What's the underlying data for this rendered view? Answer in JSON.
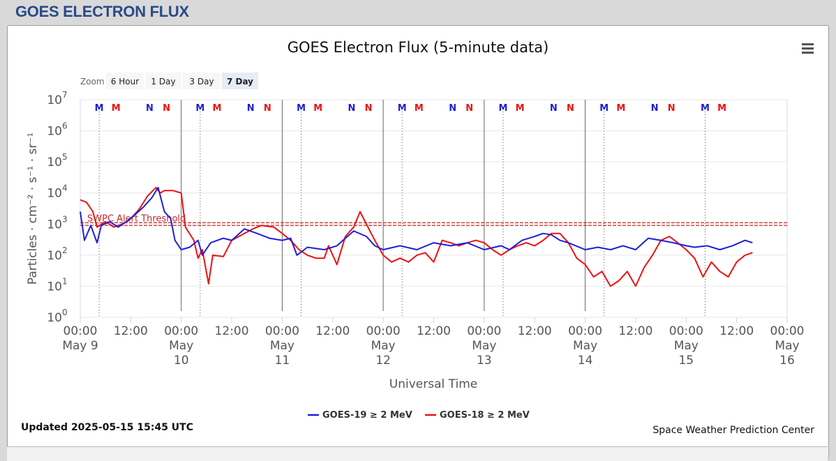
{
  "page_heading": "GOES ELECTRON FLUX",
  "menu_icon": "hamburger-menu-icon",
  "zoom": {
    "label": "Zoom",
    "buttons": [
      "6 Hour",
      "1 Day",
      "3 Day",
      "7 Day"
    ],
    "selected": "7 Day"
  },
  "footer": {
    "updated": "Updated 2025-05-15 15:45 UTC",
    "credit": "Space Weather Prediction Center"
  },
  "colors": {
    "goes19": "#1f1fd6",
    "goes18": "#ee1111",
    "threshold": "#c62828",
    "heading": "#2a4a86"
  },
  "chart_data": {
    "type": "line",
    "title": "GOES Electron Flux (5-minute data)",
    "xlabel": "Universal Time",
    "ylabel": "Particles · cm⁻² · s⁻¹ · sr⁻¹",
    "yscale": "log",
    "ylim": [
      1,
      10000000
    ],
    "y_tick_exponents": [
      0,
      1,
      2,
      3,
      4,
      5,
      6,
      7
    ],
    "xlim": [
      "2025-05-09 00:00",
      "2025-05-16 00:00"
    ],
    "x_ticks": [
      {
        "time": "2025-05-09 00:00",
        "lines": [
          "00:00",
          "May 9"
        ]
      },
      {
        "time": "2025-05-09 12:00",
        "lines": [
          "12:00"
        ]
      },
      {
        "time": "2025-05-10 00:00",
        "lines": [
          "00:00",
          "May",
          "10"
        ]
      },
      {
        "time": "2025-05-10 12:00",
        "lines": [
          "12:00"
        ]
      },
      {
        "time": "2025-05-11 00:00",
        "lines": [
          "00:00",
          "May",
          "11"
        ]
      },
      {
        "time": "2025-05-11 12:00",
        "lines": [
          "12:00"
        ]
      },
      {
        "time": "2025-05-12 00:00",
        "lines": [
          "00:00",
          "May",
          "12"
        ]
      },
      {
        "time": "2025-05-12 12:00",
        "lines": [
          "12:00"
        ]
      },
      {
        "time": "2025-05-13 00:00",
        "lines": [
          "00:00",
          "May",
          "13"
        ]
      },
      {
        "time": "2025-05-13 12:00",
        "lines": [
          "12:00"
        ]
      },
      {
        "time": "2025-05-14 00:00",
        "lines": [
          "00:00",
          "May",
          "14"
        ]
      },
      {
        "time": "2025-05-14 12:00",
        "lines": [
          "12:00"
        ]
      },
      {
        "time": "2025-05-15 00:00",
        "lines": [
          "00:00",
          "May",
          "15"
        ]
      },
      {
        "time": "2025-05-15 12:00",
        "lines": [
          "12:00"
        ]
      },
      {
        "time": "2025-05-16 00:00",
        "lines": [
          "00:00",
          "May",
          "16"
        ]
      }
    ],
    "threshold": {
      "label": "SWPC Alert Threshold",
      "value": 1000
    },
    "day_marks": [
      "2025-05-10 00:00",
      "2025-05-11 00:00",
      "2025-05-12 00:00",
      "2025-05-13 00:00",
      "2025-05-14 00:00"
    ],
    "markers": [
      {
        "label": "M",
        "time": "2025-05-09 04:30",
        "color": "blue"
      },
      {
        "label": "M",
        "time": "2025-05-09 08:30",
        "color": "red"
      },
      {
        "label": "N",
        "time": "2025-05-09 16:30",
        "color": "blue"
      },
      {
        "label": "N",
        "time": "2025-05-09 20:30",
        "color": "red"
      },
      {
        "label": "M",
        "time": "2025-05-10 04:30",
        "color": "blue"
      },
      {
        "label": "M",
        "time": "2025-05-10 08:30",
        "color": "red"
      },
      {
        "label": "N",
        "time": "2025-05-10 16:30",
        "color": "blue"
      },
      {
        "label": "N",
        "time": "2025-05-10 20:30",
        "color": "red"
      },
      {
        "label": "M",
        "time": "2025-05-11 04:30",
        "color": "blue"
      },
      {
        "label": "M",
        "time": "2025-05-11 08:30",
        "color": "red"
      },
      {
        "label": "N",
        "time": "2025-05-11 16:30",
        "color": "blue"
      },
      {
        "label": "N",
        "time": "2025-05-11 20:30",
        "color": "red"
      },
      {
        "label": "M",
        "time": "2025-05-12 04:30",
        "color": "blue"
      },
      {
        "label": "M",
        "time": "2025-05-12 08:30",
        "color": "red"
      },
      {
        "label": "N",
        "time": "2025-05-12 16:30",
        "color": "blue"
      },
      {
        "label": "N",
        "time": "2025-05-12 20:30",
        "color": "red"
      },
      {
        "label": "M",
        "time": "2025-05-13 04:30",
        "color": "blue"
      },
      {
        "label": "M",
        "time": "2025-05-13 08:30",
        "color": "red"
      },
      {
        "label": "N",
        "time": "2025-05-13 16:30",
        "color": "blue"
      },
      {
        "label": "N",
        "time": "2025-05-13 20:30",
        "color": "red"
      },
      {
        "label": "M",
        "time": "2025-05-14 04:30",
        "color": "blue"
      },
      {
        "label": "M",
        "time": "2025-05-14 08:30",
        "color": "red"
      },
      {
        "label": "N",
        "time": "2025-05-14 16:30",
        "color": "blue"
      },
      {
        "label": "N",
        "time": "2025-05-14 20:30",
        "color": "red"
      },
      {
        "label": "M",
        "time": "2025-05-15 04:30",
        "color": "blue"
      },
      {
        "label": "M",
        "time": "2025-05-15 08:30",
        "color": "red"
      }
    ],
    "series": [
      {
        "name": "GOES-19 ≥ 2 MeV",
        "color": "#1f1fd6",
        "points": [
          [
            "2025-05-09 00:00",
            2500
          ],
          [
            "2025-05-09 01:00",
            300
          ],
          [
            "2025-05-09 02:30",
            900
          ],
          [
            "2025-05-09 04:00",
            250
          ],
          [
            "2025-05-09 05:00",
            900
          ],
          [
            "2025-05-09 07:00",
            1200
          ],
          [
            "2025-05-09 09:00",
            800
          ],
          [
            "2025-05-09 11:00",
            1200
          ],
          [
            "2025-05-09 13:00",
            2000
          ],
          [
            "2025-05-09 15:00",
            3500
          ],
          [
            "2025-05-09 17:00",
            7000
          ],
          [
            "2025-05-09 18:30",
            15000
          ],
          [
            "2025-05-09 20:00",
            2500
          ],
          [
            "2025-05-09 21:30",
            1500
          ],
          [
            "2025-05-09 22:30",
            300
          ],
          [
            "2025-05-10 00:00",
            150
          ],
          [
            "2025-05-10 02:00",
            180
          ],
          [
            "2025-05-10 04:00",
            300
          ],
          [
            "2025-05-10 05:00",
            100
          ],
          [
            "2025-05-10 07:00",
            250
          ],
          [
            "2025-05-10 10:00",
            350
          ],
          [
            "2025-05-10 12:00",
            300
          ],
          [
            "2025-05-10 15:00",
            700
          ],
          [
            "2025-05-10 18:00",
            500
          ],
          [
            "2025-05-10 21:00",
            350
          ],
          [
            "2025-05-11 00:00",
            300
          ],
          [
            "2025-05-11 02:00",
            350
          ],
          [
            "2025-05-11 03:30",
            100
          ],
          [
            "2025-05-11 06:00",
            180
          ],
          [
            "2025-05-11 10:00",
            150
          ],
          [
            "2025-05-11 13:00",
            200
          ],
          [
            "2025-05-11 15:00",
            350
          ],
          [
            "2025-05-11 17:00",
            600
          ],
          [
            "2025-05-11 20:00",
            400
          ],
          [
            "2025-05-11 22:00",
            200
          ],
          [
            "2025-05-12 00:00",
            150
          ],
          [
            "2025-05-12 04:00",
            200
          ],
          [
            "2025-05-12 08:00",
            150
          ],
          [
            "2025-05-12 12:00",
            250
          ],
          [
            "2025-05-12 16:00",
            200
          ],
          [
            "2025-05-12 20:00",
            250
          ],
          [
            "2025-05-13 00:00",
            150
          ],
          [
            "2025-05-13 04:00",
            200
          ],
          [
            "2025-05-13 06:00",
            150
          ],
          [
            "2025-05-13 09:00",
            300
          ],
          [
            "2025-05-13 12:00",
            400
          ],
          [
            "2025-05-13 14:00",
            500
          ],
          [
            "2025-05-13 16:00",
            450
          ],
          [
            "2025-05-13 18:00",
            300
          ],
          [
            "2025-05-13 20:00",
            250
          ],
          [
            "2025-05-14 00:00",
            150
          ],
          [
            "2025-05-14 03:00",
            180
          ],
          [
            "2025-05-14 06:00",
            150
          ],
          [
            "2025-05-14 09:00",
            200
          ],
          [
            "2025-05-14 12:00",
            150
          ],
          [
            "2025-05-14 15:00",
            350
          ],
          [
            "2025-05-14 18:00",
            300
          ],
          [
            "2025-05-14 21:00",
            250
          ],
          [
            "2025-05-15 00:00",
            200
          ],
          [
            "2025-05-15 02:00",
            180
          ],
          [
            "2025-05-15 05:00",
            200
          ],
          [
            "2025-05-15 08:00",
            150
          ],
          [
            "2025-05-15 11:00",
            200
          ],
          [
            "2025-05-15 14:00",
            300
          ],
          [
            "2025-05-15 15:45",
            250
          ]
        ]
      },
      {
        "name": "GOES-18 ≥ 2 MeV",
        "color": "#ee1111",
        "points": [
          [
            "2025-05-09 00:00",
            6000
          ],
          [
            "2025-05-09 01:30",
            5000
          ],
          [
            "2025-05-09 03:00",
            2500
          ],
          [
            "2025-05-09 04:00",
            800
          ],
          [
            "2025-05-09 06:00",
            1200
          ],
          [
            "2025-05-09 08:00",
            800
          ],
          [
            "2025-05-09 10:00",
            1000
          ],
          [
            "2025-05-09 12:00",
            1500
          ],
          [
            "2025-05-09 14:00",
            3000
          ],
          [
            "2025-05-09 16:00",
            8000
          ],
          [
            "2025-05-09 18:00",
            15000
          ],
          [
            "2025-05-09 19:00",
            10000
          ],
          [
            "2025-05-09 20:00",
            12000
          ],
          [
            "2025-05-09 22:00",
            12000
          ],
          [
            "2025-05-10 00:00",
            10000
          ],
          [
            "2025-05-10 01:00",
            800
          ],
          [
            "2025-05-10 03:00",
            300
          ],
          [
            "2025-05-10 04:00",
            80
          ],
          [
            "2025-05-10 05:00",
            150
          ],
          [
            "2025-05-10 06:30",
            12
          ],
          [
            "2025-05-10 07:30",
            100
          ],
          [
            "2025-05-10 10:00",
            90
          ],
          [
            "2025-05-10 12:00",
            300
          ],
          [
            "2025-05-10 15:00",
            500
          ],
          [
            "2025-05-10 17:00",
            700
          ],
          [
            "2025-05-10 19:00",
            900
          ],
          [
            "2025-05-10 22:00",
            800
          ],
          [
            "2025-05-11 00:00",
            500
          ],
          [
            "2025-05-11 02:00",
            300
          ],
          [
            "2025-05-11 04:00",
            150
          ],
          [
            "2025-05-11 06:00",
            100
          ],
          [
            "2025-05-11 08:00",
            80
          ],
          [
            "2025-05-11 10:00",
            80
          ],
          [
            "2025-05-11 11:00",
            200
          ],
          [
            "2025-05-11 13:00",
            50
          ],
          [
            "2025-05-11 15:00",
            400
          ],
          [
            "2025-05-11 17:00",
            800
          ],
          [
            "2025-05-11 18:30",
            2500
          ],
          [
            "2025-05-11 20:00",
            1000
          ],
          [
            "2025-05-11 22:00",
            300
          ],
          [
            "2025-05-12 00:00",
            100
          ],
          [
            "2025-05-12 02:00",
            60
          ],
          [
            "2025-05-12 04:00",
            80
          ],
          [
            "2025-05-12 06:00",
            60
          ],
          [
            "2025-05-12 08:00",
            100
          ],
          [
            "2025-05-12 10:00",
            120
          ],
          [
            "2025-05-12 12:00",
            60
          ],
          [
            "2025-05-12 14:00",
            300
          ],
          [
            "2025-05-12 16:00",
            250
          ],
          [
            "2025-05-12 18:00",
            200
          ],
          [
            "2025-05-12 20:00",
            250
          ],
          [
            "2025-05-12 22:00",
            300
          ],
          [
            "2025-05-13 00:00",
            250
          ],
          [
            "2025-05-13 02:00",
            150
          ],
          [
            "2025-05-13 04:00",
            100
          ],
          [
            "2025-05-13 06:00",
            150
          ],
          [
            "2025-05-13 08:00",
            200
          ],
          [
            "2025-05-13 10:00",
            250
          ],
          [
            "2025-05-13 12:00",
            200
          ],
          [
            "2025-05-13 14:00",
            300
          ],
          [
            "2025-05-13 16:00",
            500
          ],
          [
            "2025-05-13 18:00",
            500
          ],
          [
            "2025-05-13 20:00",
            250
          ],
          [
            "2025-05-13 22:00",
            80
          ],
          [
            "2025-05-14 00:00",
            50
          ],
          [
            "2025-05-14 02:00",
            20
          ],
          [
            "2025-05-14 04:00",
            30
          ],
          [
            "2025-05-14 06:00",
            10
          ],
          [
            "2025-05-14 08:00",
            15
          ],
          [
            "2025-05-14 10:00",
            30
          ],
          [
            "2025-05-14 12:00",
            10
          ],
          [
            "2025-05-14 14:00",
            40
          ],
          [
            "2025-05-14 16:00",
            100
          ],
          [
            "2025-05-14 18:00",
            300
          ],
          [
            "2025-05-14 20:00",
            400
          ],
          [
            "2025-05-14 22:00",
            250
          ],
          [
            "2025-05-15 00:00",
            150
          ],
          [
            "2025-05-15 02:00",
            80
          ],
          [
            "2025-05-15 04:00",
            20
          ],
          [
            "2025-05-15 06:00",
            60
          ],
          [
            "2025-05-15 08:00",
            30
          ],
          [
            "2025-05-15 10:00",
            20
          ],
          [
            "2025-05-15 12:00",
            60
          ],
          [
            "2025-05-15 14:00",
            100
          ],
          [
            "2025-05-15 15:45",
            120
          ]
        ]
      }
    ]
  }
}
